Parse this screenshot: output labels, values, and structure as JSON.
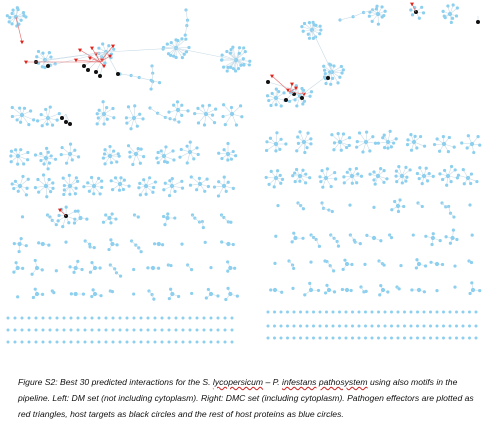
{
  "figure": {
    "panels": [
      {
        "id": "left",
        "set": "DM set"
      },
      {
        "id": "right",
        "set": "DMC set"
      }
    ],
    "node_types": {
      "pathogen_effector": {
        "shape": "triangle",
        "color": "#e0241c"
      },
      "host_target": {
        "shape": "circle",
        "color": "#111111"
      },
      "host_protein": {
        "shape": "circle",
        "color": "#8ccfee"
      }
    },
    "edge_color": "#c8dbe6",
    "effector_edge_color": "#e56a6a"
  },
  "caption": {
    "prefix": "Figure S2: Best 30 predicted interactions for the S. ",
    "word_lyco": "lycopersicum",
    "middle": " – P. ",
    "word_inf": "infestans",
    "word_patho": "pathosystem",
    "suffix": " using also motifs in the pipeline. Left: DM set (not including cytoplasm). Right: DMC set (including cytoplasm). Pathogen effectors are plotted as red triangles, host targets as black circles and the rest of host proteins as blue circles."
  }
}
